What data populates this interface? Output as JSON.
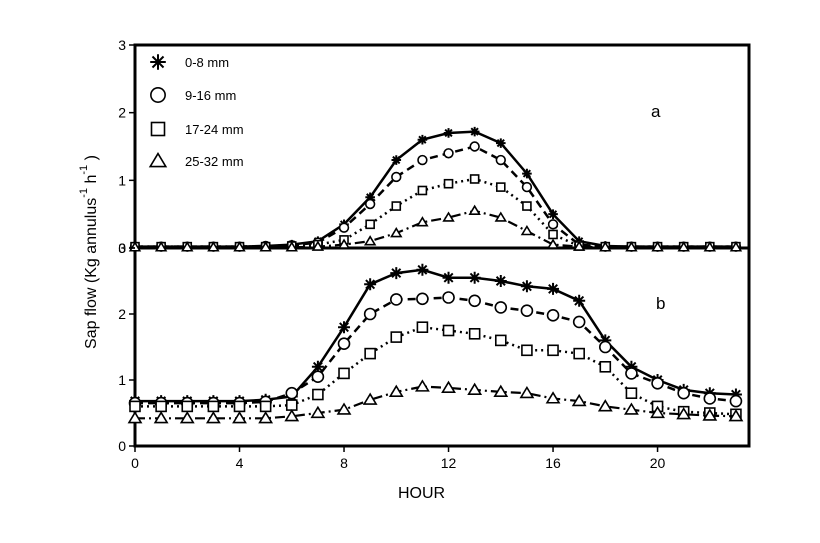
{
  "chart_data": [
    {
      "panel": "a",
      "type": "line",
      "xlabel": "",
      "ylabel": "Sap flow (Kg annulus -1 h -1 )",
      "xlim": [
        0,
        23.5
      ],
      "ylim": [
        0,
        3
      ],
      "xticks": [
        "0",
        "4",
        "8",
        "12",
        "16",
        "20"
      ],
      "yticks": [
        "0",
        "1",
        "2",
        "3"
      ],
      "legend": {
        "position": "top-left"
      },
      "series": [
        {
          "name": "0-8 mm",
          "marker": "star",
          "style": "solid",
          "x": [
            0,
            1,
            2,
            3,
            4,
            5,
            6,
            7,
            8,
            9,
            10,
            11,
            12,
            13,
            14,
            15,
            16,
            17,
            18,
            19,
            20,
            21,
            22,
            23
          ],
          "values": [
            0.02,
            0.02,
            0.02,
            0.02,
            0.02,
            0.03,
            0.05,
            0.1,
            0.35,
            0.75,
            1.3,
            1.6,
            1.7,
            1.72,
            1.55,
            1.1,
            0.5,
            0.1,
            0.03,
            0.02,
            0.02,
            0.02,
            0.02,
            0.02
          ]
        },
        {
          "name": "9-16 mm",
          "marker": "circle",
          "style": "dashed",
          "x": [
            0,
            1,
            2,
            3,
            4,
            5,
            6,
            7,
            8,
            9,
            10,
            11,
            12,
            13,
            14,
            15,
            16,
            17,
            18,
            19,
            20,
            21,
            22,
            23
          ],
          "values": [
            0.02,
            0.02,
            0.02,
            0.02,
            0.02,
            0.03,
            0.04,
            0.08,
            0.3,
            0.65,
            1.05,
            1.3,
            1.4,
            1.5,
            1.3,
            0.9,
            0.35,
            0.05,
            0.02,
            0.02,
            0.02,
            0.02,
            0.02,
            0.02
          ]
        },
        {
          "name": "17-24 mm",
          "marker": "square",
          "style": "dotted",
          "x": [
            0,
            1,
            2,
            3,
            4,
            5,
            6,
            7,
            8,
            9,
            10,
            11,
            12,
            13,
            14,
            15,
            16,
            17,
            18,
            19,
            20,
            21,
            22,
            23
          ],
          "values": [
            0.02,
            0.02,
            0.02,
            0.02,
            0.02,
            0.02,
            0.03,
            0.05,
            0.12,
            0.35,
            0.62,
            0.85,
            0.95,
            1.02,
            0.9,
            0.62,
            0.2,
            0.03,
            0.02,
            0.02,
            0.02,
            0.02,
            0.02,
            0.02
          ]
        },
        {
          "name": "25-32 mm",
          "marker": "triangle",
          "style": "dashdot",
          "x": [
            0,
            1,
            2,
            3,
            4,
            5,
            6,
            7,
            8,
            9,
            10,
            11,
            12,
            13,
            14,
            15,
            16,
            17,
            18,
            19,
            20,
            21,
            22,
            23
          ],
          "values": [
            0.01,
            0.01,
            0.01,
            0.01,
            0.01,
            0.01,
            0.01,
            0.02,
            0.05,
            0.1,
            0.22,
            0.38,
            0.45,
            0.55,
            0.45,
            0.25,
            0.05,
            0.02,
            0.01,
            0.01,
            0.01,
            0.01,
            0.01,
            0.01
          ]
        }
      ]
    },
    {
      "panel": "b",
      "type": "line",
      "xlabel": "HOUR",
      "ylabel": "Sap flow (Kg annulus -1 h -1 )",
      "xlim": [
        0,
        23.5
      ],
      "ylim": [
        0,
        3
      ],
      "xticks": [
        "0",
        "4",
        "8",
        "12",
        "16",
        "20"
      ],
      "yticks": [
        "0",
        "1",
        "2",
        "3"
      ],
      "series": [
        {
          "name": "0-8 mm",
          "marker": "star",
          "style": "solid",
          "x": [
            0,
            1,
            2,
            3,
            4,
            5,
            6,
            7,
            8,
            9,
            10,
            11,
            12,
            13,
            14,
            15,
            16,
            17,
            18,
            19,
            20,
            21,
            22,
            23
          ],
          "values": [
            0.68,
            0.68,
            0.68,
            0.68,
            0.68,
            0.7,
            0.75,
            1.2,
            1.8,
            2.45,
            2.62,
            2.67,
            2.55,
            2.55,
            2.5,
            2.42,
            2.38,
            2.2,
            1.6,
            1.2,
            1.0,
            0.85,
            0.8,
            0.78
          ]
        },
        {
          "name": "9-16 mm",
          "marker": "circle",
          "style": "dashed",
          "x": [
            0,
            1,
            2,
            3,
            4,
            5,
            6,
            7,
            8,
            9,
            10,
            11,
            12,
            13,
            14,
            15,
            16,
            17,
            18,
            19,
            20,
            21,
            22,
            23
          ],
          "values": [
            0.65,
            0.65,
            0.65,
            0.65,
            0.65,
            0.67,
            0.8,
            1.05,
            1.55,
            2.0,
            2.22,
            2.23,
            2.25,
            2.2,
            2.1,
            2.05,
            1.98,
            1.88,
            1.5,
            1.1,
            0.95,
            0.8,
            0.72,
            0.68
          ]
        },
        {
          "name": "17-24 mm",
          "marker": "square",
          "style": "dotted",
          "x": [
            0,
            1,
            2,
            3,
            4,
            5,
            6,
            7,
            8,
            9,
            10,
            11,
            12,
            13,
            14,
            15,
            16,
            17,
            18,
            19,
            20,
            21,
            22,
            23
          ],
          "values": [
            0.6,
            0.6,
            0.6,
            0.6,
            0.6,
            0.6,
            0.62,
            0.78,
            1.1,
            1.4,
            1.65,
            1.8,
            1.75,
            1.7,
            1.6,
            1.45,
            1.45,
            1.4,
            1.2,
            0.8,
            0.6,
            0.52,
            0.5,
            0.48
          ]
        },
        {
          "name": "25-32 mm",
          "marker": "triangle",
          "style": "dashdot",
          "x": [
            0,
            1,
            2,
            3,
            4,
            5,
            6,
            7,
            8,
            9,
            10,
            11,
            12,
            13,
            14,
            15,
            16,
            17,
            18,
            19,
            20,
            21,
            22,
            23
          ],
          "values": [
            0.42,
            0.42,
            0.42,
            0.42,
            0.42,
            0.42,
            0.45,
            0.5,
            0.55,
            0.7,
            0.82,
            0.9,
            0.88,
            0.85,
            0.82,
            0.8,
            0.72,
            0.68,
            0.6,
            0.55,
            0.5,
            0.48,
            0.46,
            0.45
          ]
        }
      ]
    }
  ],
  "labels": {
    "panel_a": "a",
    "panel_b": "b",
    "xlabel": "HOUR",
    "ylabel_main": "Sap flow (Kg annulus",
    "ylabel_sup1": "-1",
    "ylabel_h": " h",
    "ylabel_sup2": "-1",
    "ylabel_close": " )",
    "legend_markers": {
      "star": "star-marker",
      "circle": "circle-marker",
      "square": "square-marker",
      "triangle": "triangle-marker"
    }
  }
}
